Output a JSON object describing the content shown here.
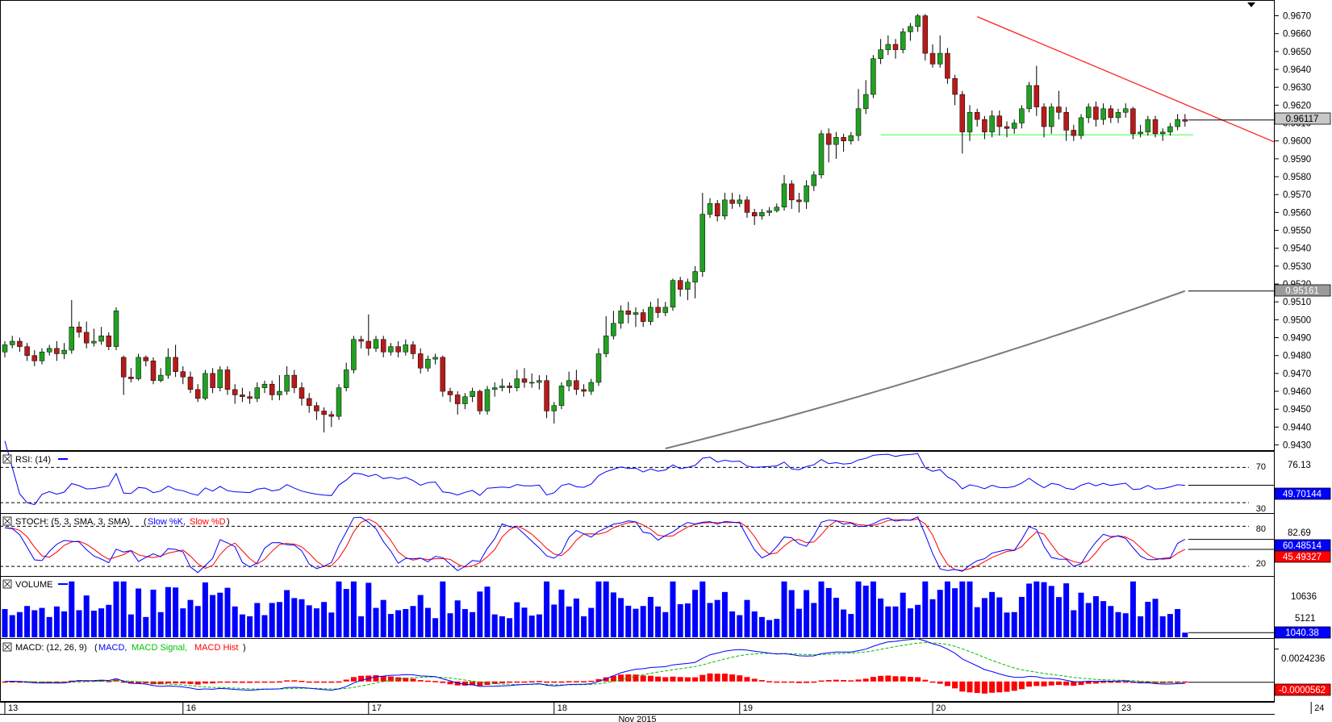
{
  "chart_data": {
    "type": "candlestick",
    "price": {
      "y_ticks": [
        "0.9670",
        "0.9660",
        "0.9650",
        "0.9640",
        "0.9630",
        "0.9620",
        "0.9610",
        "0.9600",
        "0.9590",
        "0.9580",
        "0.9570",
        "0.9560",
        "0.9550",
        "0.9540",
        "0.9530",
        "0.9520",
        "0.9510",
        "0.9500",
        "0.9490",
        "0.9480",
        "0.9470",
        "0.9460",
        "0.9450",
        "0.9440",
        "0.9430"
      ],
      "ylim": [
        0.9428,
        0.9677
      ],
      "current_price_label": "0.96117",
      "current_price": 0.96117,
      "ma_label": "0.95161",
      "ma_value": 0.95161,
      "ma_start": 0.9428,
      "support_level": 0.96034,
      "resistance_start": 0.96695,
      "resistance_end": 0.95995,
      "candles": [
        [
          0.9482,
          0.9486,
          0.9479,
          0.9488
        ],
        [
          0.9486,
          0.9488,
          0.9484,
          0.9491
        ],
        [
          0.9488,
          0.9485,
          0.9482,
          0.949
        ],
        [
          0.9485,
          0.948,
          0.9477,
          0.9487
        ],
        [
          0.948,
          0.9477,
          0.9474,
          0.9483
        ],
        [
          0.9477,
          0.9482,
          0.9475,
          0.9484
        ],
        [
          0.9482,
          0.9484,
          0.948,
          0.9486
        ],
        [
          0.9484,
          0.9481,
          0.9477,
          0.9488
        ],
        [
          0.9481,
          0.9483,
          0.9478,
          0.9487
        ],
        [
          0.9483,
          0.9496,
          0.9481,
          0.9511
        ],
        [
          0.9496,
          0.9493,
          0.949,
          0.9499
        ],
        [
          0.9493,
          0.9487,
          0.9484,
          0.9499
        ],
        [
          0.9487,
          0.9488,
          0.9485,
          0.9495
        ],
        [
          0.9488,
          0.9491,
          0.9486,
          0.9496
        ],
        [
          0.9491,
          0.9485,
          0.9483,
          0.9493
        ],
        [
          0.9485,
          0.9505,
          0.9483,
          0.9507
        ],
        [
          0.9479,
          0.9468,
          0.9458,
          0.948
        ],
        [
          0.9468,
          0.9467,
          0.9465,
          0.9473
        ],
        [
          0.9467,
          0.9479,
          0.9466,
          0.9481
        ],
        [
          0.9479,
          0.9477,
          0.9474,
          0.948
        ],
        [
          0.9477,
          0.9466,
          0.9464,
          0.9479
        ],
        [
          0.9466,
          0.9469,
          0.9465,
          0.9473
        ],
        [
          0.9469,
          0.9479,
          0.9467,
          0.9484
        ],
        [
          0.9479,
          0.9471,
          0.9468,
          0.9486
        ],
        [
          0.9471,
          0.9468,
          0.9464,
          0.9474
        ],
        [
          0.9468,
          0.9461,
          0.9459,
          0.9471
        ],
        [
          0.9461,
          0.9456,
          0.9454,
          0.9464
        ],
        [
          0.9456,
          0.947,
          0.9455,
          0.9472
        ],
        [
          0.947,
          0.9462,
          0.9459,
          0.9473
        ],
        [
          0.9462,
          0.9472,
          0.946,
          0.9474
        ],
        [
          0.9472,
          0.9461,
          0.9458,
          0.9474
        ],
        [
          0.9461,
          0.9458,
          0.9453,
          0.9464
        ],
        [
          0.9458,
          0.9457,
          0.9454,
          0.9462
        ],
        [
          0.9457,
          0.9456,
          0.9453,
          0.946
        ],
        [
          0.9456,
          0.9462,
          0.9454,
          0.9465
        ],
        [
          0.9462,
          0.9464,
          0.9459,
          0.9466
        ],
        [
          0.9464,
          0.9458,
          0.9455,
          0.9466
        ],
        [
          0.9458,
          0.946,
          0.9455,
          0.9469
        ],
        [
          0.946,
          0.9469,
          0.9458,
          0.9474
        ],
        [
          0.9469,
          0.9462,
          0.9459,
          0.9472
        ],
        [
          0.9462,
          0.9456,
          0.9452,
          0.9465
        ],
        [
          0.9456,
          0.9452,
          0.9448,
          0.9459
        ],
        [
          0.9452,
          0.9449,
          0.9444,
          0.9454
        ],
        [
          0.9449,
          0.9447,
          0.9437,
          0.9451
        ],
        [
          0.9447,
          0.9446,
          0.944,
          0.9449
        ],
        [
          0.9446,
          0.9462,
          0.9444,
          0.9464
        ],
        [
          0.9462,
          0.9472,
          0.946,
          0.9476
        ],
        [
          0.9472,
          0.9489,
          0.947,
          0.9491
        ],
        [
          0.9489,
          0.9488,
          0.9484,
          0.9491
        ],
        [
          0.9488,
          0.9484,
          0.948,
          0.9503
        ],
        [
          0.9484,
          0.9489,
          0.9482,
          0.9491
        ],
        [
          0.9489,
          0.9482,
          0.9479,
          0.9491
        ],
        [
          0.9482,
          0.9485,
          0.948,
          0.9487
        ],
        [
          0.9485,
          0.9482,
          0.9479,
          0.9488
        ],
        [
          0.9482,
          0.9486,
          0.948,
          0.9489
        ],
        [
          0.9486,
          0.9481,
          0.9478,
          0.9488
        ],
        [
          0.9481,
          0.9473,
          0.947,
          0.9484
        ],
        [
          0.9473,
          0.9478,
          0.9471,
          0.948
        ],
        [
          0.9478,
          0.9479,
          0.9475,
          0.9481
        ],
        [
          0.9479,
          0.946,
          0.9457,
          0.948
        ],
        [
          0.946,
          0.9458,
          0.9454,
          0.9462
        ],
        [
          0.9458,
          0.9453,
          0.9447,
          0.946
        ],
        [
          0.9453,
          0.9457,
          0.945,
          0.9459
        ],
        [
          0.9457,
          0.946,
          0.9454,
          0.9462
        ],
        [
          0.946,
          0.9449,
          0.9447,
          0.9461
        ],
        [
          0.9449,
          0.9461,
          0.9447,
          0.9463
        ],
        [
          0.9461,
          0.9462,
          0.9457,
          0.9465
        ],
        [
          0.9462,
          0.9463,
          0.946,
          0.9467
        ],
        [
          0.9463,
          0.9462,
          0.9459,
          0.9465
        ],
        [
          0.9462,
          0.9467,
          0.946,
          0.9472
        ],
        [
          0.9467,
          0.9465,
          0.9462,
          0.9473
        ],
        [
          0.9465,
          0.9465,
          0.9462,
          0.947
        ],
        [
          0.9465,
          0.9466,
          0.9461,
          0.9469
        ],
        [
          0.9466,
          0.9449,
          0.9445,
          0.9469
        ],
        [
          0.9449,
          0.9452,
          0.9442,
          0.9454
        ],
        [
          0.9452,
          0.9463,
          0.945,
          0.9465
        ],
        [
          0.9463,
          0.9466,
          0.946,
          0.9471
        ],
        [
          0.9466,
          0.9461,
          0.9458,
          0.9472
        ],
        [
          0.9461,
          0.946,
          0.9457,
          0.9464
        ],
        [
          0.946,
          0.9465,
          0.9458,
          0.9467
        ],
        [
          0.9465,
          0.9481,
          0.9463,
          0.9484
        ],
        [
          0.9481,
          0.9491,
          0.9479,
          0.9502
        ],
        [
          0.9491,
          0.9498,
          0.9489,
          0.9505
        ],
        [
          0.9498,
          0.9505,
          0.9495,
          0.9508
        ],
        [
          0.9505,
          0.9503,
          0.9498,
          0.951
        ],
        [
          0.9503,
          0.9504,
          0.9496,
          0.9507
        ],
        [
          0.9504,
          0.9499,
          0.9496,
          0.9506
        ],
        [
          0.9499,
          0.9507,
          0.9497,
          0.951
        ],
        [
          0.9507,
          0.9504,
          0.9501,
          0.9512
        ],
        [
          0.9504,
          0.9507,
          0.9502,
          0.951
        ],
        [
          0.9507,
          0.9522,
          0.9505,
          0.9523
        ],
        [
          0.9522,
          0.9517,
          0.9513,
          0.9524
        ],
        [
          0.9517,
          0.9521,
          0.9511,
          0.9523
        ],
        [
          0.9521,
          0.9527,
          0.9512,
          0.953
        ],
        [
          0.9527,
          0.9559,
          0.9524,
          0.9571
        ],
        [
          0.9559,
          0.9565,
          0.9557,
          0.9568
        ],
        [
          0.9565,
          0.9558,
          0.9555,
          0.9567
        ],
        [
          0.9558,
          0.9567,
          0.9556,
          0.9571
        ],
        [
          0.9567,
          0.9565,
          0.9562,
          0.9571
        ],
        [
          0.9565,
          0.9567,
          0.9563,
          0.957
        ],
        [
          0.9567,
          0.956,
          0.9557,
          0.9569
        ],
        [
          0.956,
          0.9558,
          0.9553,
          0.9562
        ],
        [
          0.9558,
          0.956,
          0.9556,
          0.9562
        ],
        [
          0.956,
          0.9561,
          0.9558,
          0.9563
        ],
        [
          0.9561,
          0.9563,
          0.956,
          0.9565
        ],
        [
          0.9563,
          0.9576,
          0.9561,
          0.9581
        ],
        [
          0.9576,
          0.9567,
          0.9562,
          0.9578
        ],
        [
          0.9567,
          0.9566,
          0.956,
          0.9571
        ],
        [
          0.9566,
          0.9575,
          0.9562,
          0.9578
        ],
        [
          0.9575,
          0.9581,
          0.9572,
          0.9583
        ],
        [
          0.9581,
          0.9604,
          0.9579,
          0.9606
        ],
        [
          0.9604,
          0.9598,
          0.9588,
          0.9607
        ],
        [
          0.9598,
          0.9602,
          0.959,
          0.9605
        ],
        [
          0.9602,
          0.96,
          0.9594,
          0.9604
        ],
        [
          0.96,
          0.9603,
          0.9598,
          0.9605
        ],
        [
          0.9603,
          0.9618,
          0.96,
          0.9629
        ],
        [
          0.9618,
          0.9626,
          0.9615,
          0.9634
        ],
        [
          0.9626,
          0.9646,
          0.9624,
          0.9648
        ],
        [
          0.9646,
          0.9651,
          0.9643,
          0.9657
        ],
        [
          0.9651,
          0.9654,
          0.9648,
          0.9659
        ],
        [
          0.9654,
          0.9651,
          0.9646,
          0.9657
        ],
        [
          0.9651,
          0.9661,
          0.9649,
          0.9663
        ],
        [
          0.9661,
          0.9664,
          0.9656,
          0.9666
        ],
        [
          0.9664,
          0.967,
          0.9661,
          0.9671
        ],
        [
          0.967,
          0.9649,
          0.9645,
          0.9671
        ],
        [
          0.9649,
          0.9643,
          0.9641,
          0.9654
        ],
        [
          0.9643,
          0.9649,
          0.9641,
          0.9659
        ],
        [
          0.9649,
          0.9635,
          0.9632,
          0.9652
        ],
        [
          0.9635,
          0.9626,
          0.962,
          0.9637
        ],
        [
          0.9626,
          0.9605,
          0.9593,
          0.9628
        ],
        [
          0.9605,
          0.9616,
          0.96,
          0.962
        ],
        [
          0.9616,
          0.9612,
          0.9608,
          0.9618
        ],
        [
          0.9612,
          0.9605,
          0.9601,
          0.9614
        ],
        [
          0.9605,
          0.9614,
          0.9602,
          0.9617
        ],
        [
          0.9614,
          0.9608,
          0.9603,
          0.9617
        ],
        [
          0.9608,
          0.9607,
          0.9602,
          0.9611
        ],
        [
          0.9607,
          0.961,
          0.9604,
          0.9612
        ],
        [
          0.961,
          0.9618,
          0.9607,
          0.962
        ],
        [
          0.9618,
          0.9631,
          0.9616,
          0.9633
        ],
        [
          0.9631,
          0.9619,
          0.9614,
          0.9642
        ],
        [
          0.9619,
          0.9608,
          0.9602,
          0.9621
        ],
        [
          0.9608,
          0.9619,
          0.9604,
          0.9621
        ],
        [
          0.9619,
          0.9616,
          0.9612,
          0.9628
        ],
        [
          0.9616,
          0.9606,
          0.96,
          0.9619
        ],
        [
          0.9606,
          0.9603,
          0.96,
          0.9609
        ],
        [
          0.9603,
          0.9613,
          0.9601,
          0.9615
        ],
        [
          0.9613,
          0.9619,
          0.961,
          0.9621
        ],
        [
          0.9619,
          0.9612,
          0.9608,
          0.9622
        ],
        [
          0.9612,
          0.9618,
          0.9609,
          0.9621
        ],
        [
          0.9618,
          0.9613,
          0.961,
          0.962
        ],
        [
          0.9613,
          0.9616,
          0.961,
          0.9618
        ],
        [
          0.9616,
          0.9618,
          0.9613,
          0.9621
        ],
        [
          0.9618,
          0.9604,
          0.9601,
          0.9619
        ],
        [
          0.9604,
          0.9605,
          0.9602,
          0.9609
        ],
        [
          0.9605,
          0.9612,
          0.9603,
          0.9614
        ],
        [
          0.9612,
          0.9604,
          0.9602,
          0.9614
        ],
        [
          0.9604,
          0.9605,
          0.96,
          0.9607
        ],
        [
          0.9605,
          0.9608,
          0.9603,
          0.961
        ],
        [
          0.9608,
          0.9612,
          0.9606,
          0.9615
        ],
        [
          0.9612,
          0.9611,
          0.9608,
          0.9615
        ]
      ]
    },
    "date_labels": [
      {
        "text": "13",
        "index": 0
      },
      {
        "text": "16",
        "index": 24
      },
      {
        "text": "17",
        "index": 49
      },
      {
        "text": "18",
        "index": 74
      },
      {
        "text": "19",
        "index": 99
      },
      {
        "text": "20",
        "index": 125
      },
      {
        "text": "23",
        "index": 150
      },
      {
        "text": "24",
        "index": 176
      }
    ],
    "month_label": "Nov 2015",
    "rsi": {
      "title": "RSI: (14)",
      "levels": [
        70,
        30
      ],
      "level_labels": [
        "70",
        "30"
      ],
      "ylim": [
        20,
        85
      ],
      "max_label": "76.13",
      "value_label": "49.70144",
      "value": 49.70144
    },
    "stoch": {
      "title": "STOCH: (5, 3, SMA, 3, SMA)",
      "k_label": "Slow %K,",
      "d_label": "Slow %D",
      "levels": [
        80,
        20
      ],
      "level_labels": [
        "80",
        "20"
      ],
      "ylim": [
        8,
        95
      ],
      "max_label": "82.69",
      "k_value_label": "60.48514",
      "k_value": 60.48514,
      "d_value_label": "45.49327",
      "d_value": 45.49327
    },
    "volume": {
      "title": "VOLUME",
      "ticks": [
        "10636",
        "5121"
      ],
      "ylim": [
        0,
        13000
      ],
      "value_label": "1040.38",
      "value": 1040.38
    },
    "macd": {
      "title": "MACD: (12, 26, 9)",
      "macd_label": "MACD,",
      "signal_label": "MACD Signal,",
      "hist_label": "MACD Hist",
      "ticks": [
        "0.0024236"
      ],
      "ticks_top": 0.0024236,
      "ylim": [
        -0.0014,
        0.003
      ],
      "value_label": "-0.0000562",
      "value": -5.62e-05
    },
    "colors": {
      "bull": "#22a022",
      "bear": "#b81a1a",
      "resistance": "#ff2020",
      "support": "#66ff66",
      "ma": "#7a7a7a",
      "line_blue": "#0000ff",
      "line_red": "#ff0000",
      "macd_signal": "#00c000",
      "hist": "#ff0000"
    }
  }
}
